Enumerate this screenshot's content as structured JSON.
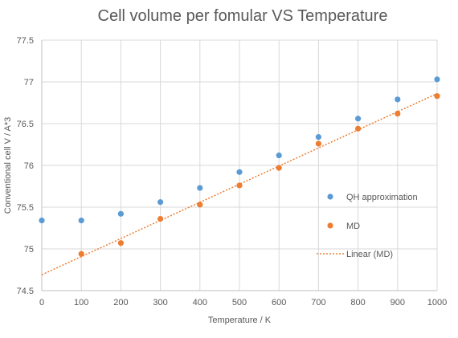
{
  "chart_data": {
    "type": "scatter",
    "title": "Cell volume per fomular VS Temperature",
    "xlabel": "Temperature / K",
    "ylabel": "Conventional cell V / A*3",
    "xlim": [
      0,
      1000
    ],
    "ylim": [
      74.5,
      77.5
    ],
    "x_ticks": [
      "0",
      "100",
      "200",
      "300",
      "400",
      "500",
      "600",
      "700",
      "800",
      "900",
      "1000"
    ],
    "y_ticks": [
      "74.5",
      "75",
      "75.5",
      "76",
      "76.5",
      "77",
      "77.5"
    ],
    "grid": true,
    "legend_position": "right",
    "series": [
      {
        "name": "QH approximation",
        "color": "#5b9bd5",
        "marker": "circle",
        "x": [
          0,
          100,
          200,
          300,
          400,
          500,
          600,
          700,
          800,
          900,
          1000
        ],
        "y": [
          75.34,
          75.34,
          75.42,
          75.56,
          75.73,
          75.92,
          76.12,
          76.34,
          76.56,
          76.79,
          77.03
        ]
      },
      {
        "name": "MD",
        "color": "#ed7d31",
        "marker": "circle",
        "x": [
          100,
          200,
          300,
          400,
          500,
          600,
          700,
          800,
          900,
          1000
        ],
        "y": [
          74.94,
          75.07,
          75.36,
          75.53,
          75.76,
          75.97,
          76.26,
          76.44,
          76.62,
          76.83
        ]
      }
    ],
    "trendline": {
      "name": "Linear (MD)",
      "color": "#ed7d31",
      "style": "dotted",
      "x": [
        0,
        1000
      ],
      "y": [
        74.69,
        76.86
      ]
    }
  }
}
